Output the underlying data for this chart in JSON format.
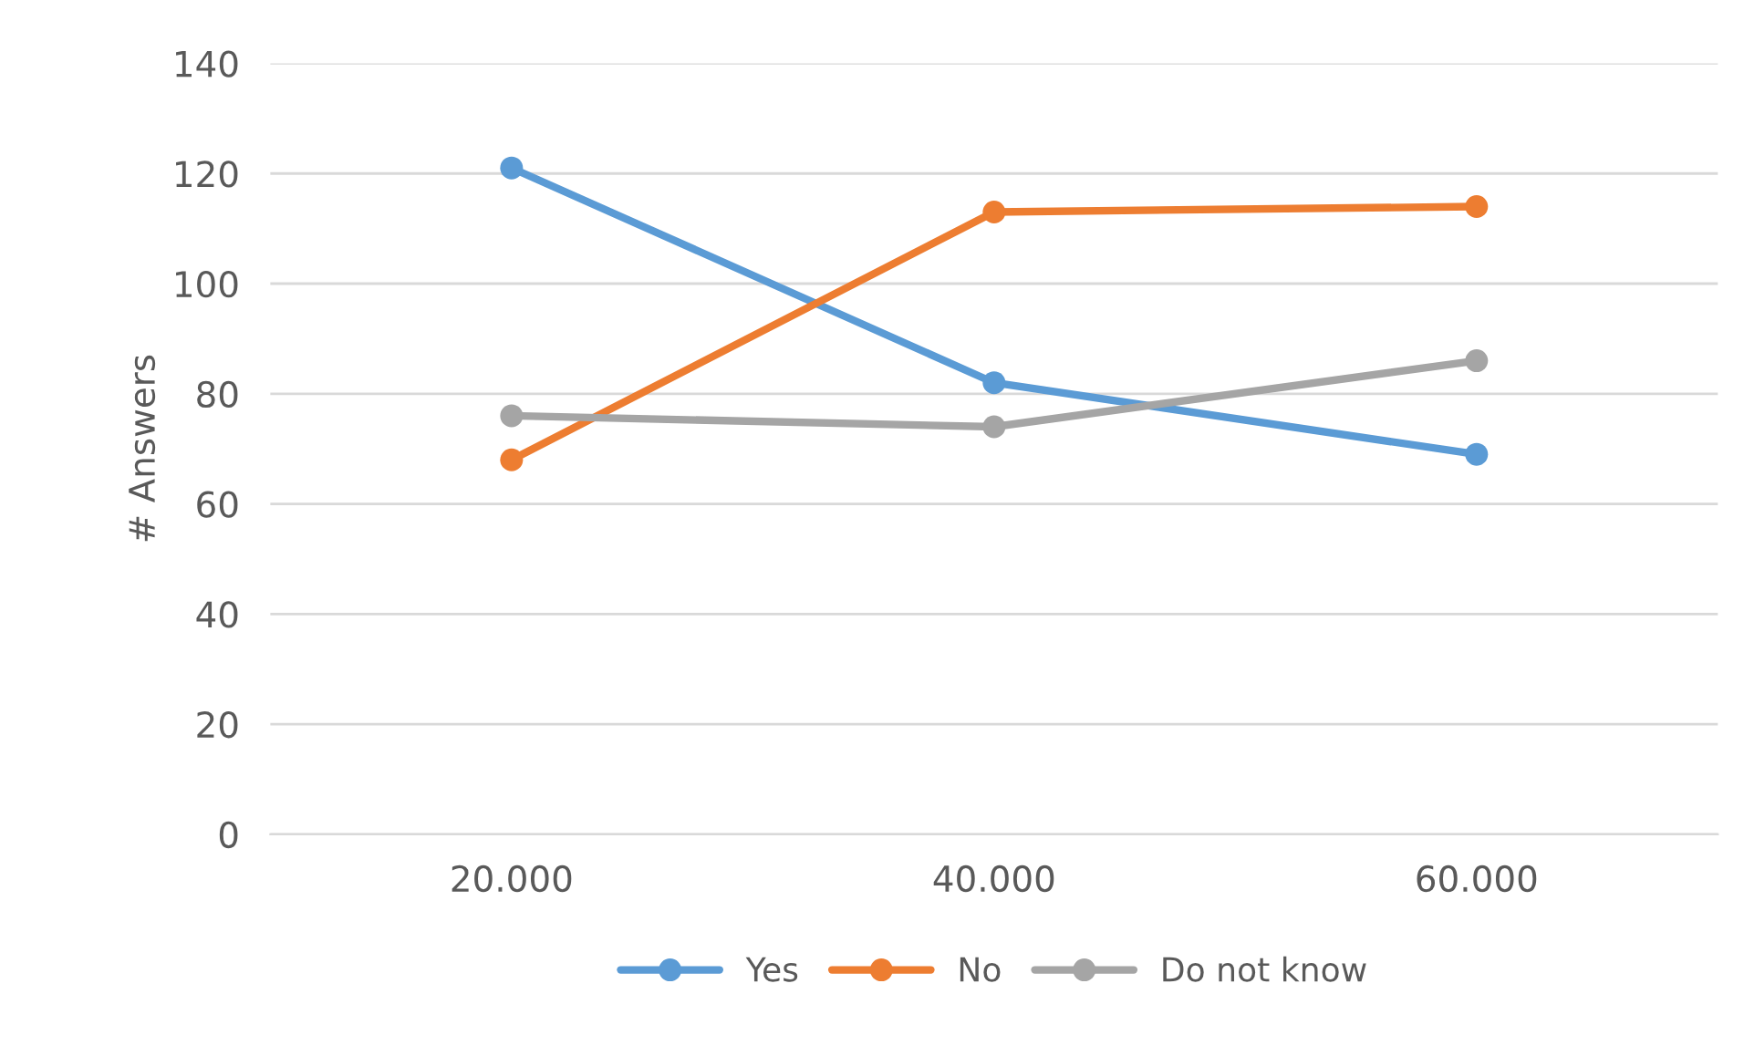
{
  "chart_data": {
    "type": "line",
    "ylabel": "# Answers",
    "categories": [
      "20.000",
      "40.000",
      "60.000"
    ],
    "series": [
      {
        "name": "Yes",
        "color": "#5b9bd5",
        "values": [
          121,
          82,
          69
        ]
      },
      {
        "name": "No",
        "color": "#ed7d31",
        "values": [
          68,
          113,
          114
        ]
      },
      {
        "name": "Do not know",
        "color": "#a5a5a5",
        "values": [
          76,
          74,
          86
        ]
      }
    ],
    "ylim": [
      0,
      140
    ],
    "yticks": [
      0,
      20,
      40,
      60,
      80,
      100,
      120,
      140
    ],
    "grid": "y",
    "legend": "bottom",
    "marker": "circle",
    "line_style": "solid"
  }
}
